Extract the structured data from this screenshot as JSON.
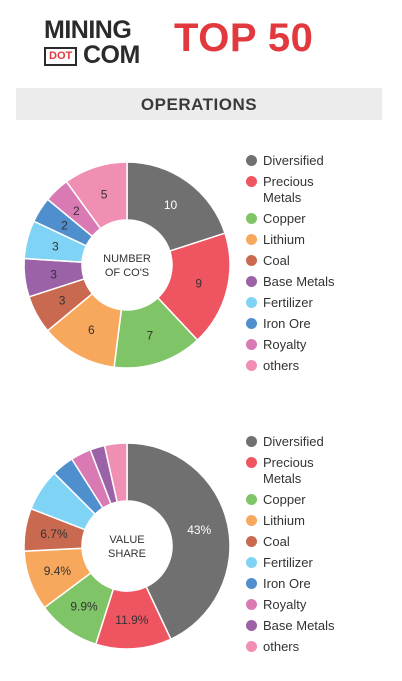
{
  "header": {
    "logo_top": "MINING",
    "logo_dot": "DOT",
    "logo_com": "COM",
    "badge": "TOP 50"
  },
  "section": {
    "title": "OPERATIONS"
  },
  "chart_data": [
    {
      "type": "pie",
      "center_label": [
        "NUMBER",
        "OF CO'S"
      ],
      "categories": [
        "Diversified",
        "Precious Metals",
        "Copper",
        "Lithium",
        "Coal",
        "Base Metals",
        "Fertilizer",
        "Iron Ore",
        "Royalty",
        "others"
      ],
      "values": [
        10,
        9,
        7,
        6,
        3,
        3,
        3,
        2,
        2,
        5
      ],
      "data_labels": [
        "10",
        "9",
        "7",
        "6",
        "3",
        "3",
        "3",
        "2",
        "2",
        "5"
      ],
      "colors": [
        "#717070",
        "#ef5561",
        "#7fc466",
        "#f8a85c",
        "#c9694f",
        "#9b62a8",
        "#7fd3f4",
        "#4f8fcd",
        "#d97ab5",
        "#f08eb3"
      ],
      "legend": [
        "Diversified",
        "Precious Metals",
        "Copper",
        "Lithium",
        "Coal",
        "Base Metals",
        "Fertilizer",
        "Iron Ore",
        "Royalty",
        "others"
      ],
      "legend_colors": [
        "#717070",
        "#ef5561",
        "#7fc466",
        "#f8a85c",
        "#c9694f",
        "#9b62a8",
        "#7fd3f4",
        "#4f8fcd",
        "#d97ab5",
        "#f08eb3"
      ]
    },
    {
      "type": "pie",
      "center_label": [
        "VALUE",
        "SHARE"
      ],
      "categories": [
        "Diversified",
        "Precious Metals",
        "Copper",
        "Lithium",
        "Coal",
        "Fertilizer",
        "Iron Ore",
        "Royalty",
        "Base Metals",
        "others"
      ],
      "values": [
        43,
        11.9,
        9.9,
        9.4,
        6.7,
        6.6,
        3.5,
        3.2,
        2.3,
        3.5
      ],
      "data_labels": [
        "43%",
        "11.9%",
        "9.9%",
        "9.4%",
        "6.7%",
        "",
        "",
        "",
        "",
        ""
      ],
      "colors": [
        "#717070",
        "#ef5561",
        "#7fc466",
        "#f8a85c",
        "#c9694f",
        "#7fd3f4",
        "#4f8fcd",
        "#d97ab5",
        "#9b62a8",
        "#f08eb3"
      ],
      "legend": [
        "Diversified",
        "Precious Metals",
        "Copper",
        "Lithium",
        "Coal",
        "Fertilizer",
        "Iron Ore",
        "Royalty",
        "Base Metals",
        "others"
      ],
      "legend_colors": [
        "#717070",
        "#ef5561",
        "#7fc466",
        "#f8a85c",
        "#c9694f",
        "#7fd3f4",
        "#4f8fcd",
        "#d97ab5",
        "#9b62a8",
        "#f08eb3"
      ]
    }
  ]
}
